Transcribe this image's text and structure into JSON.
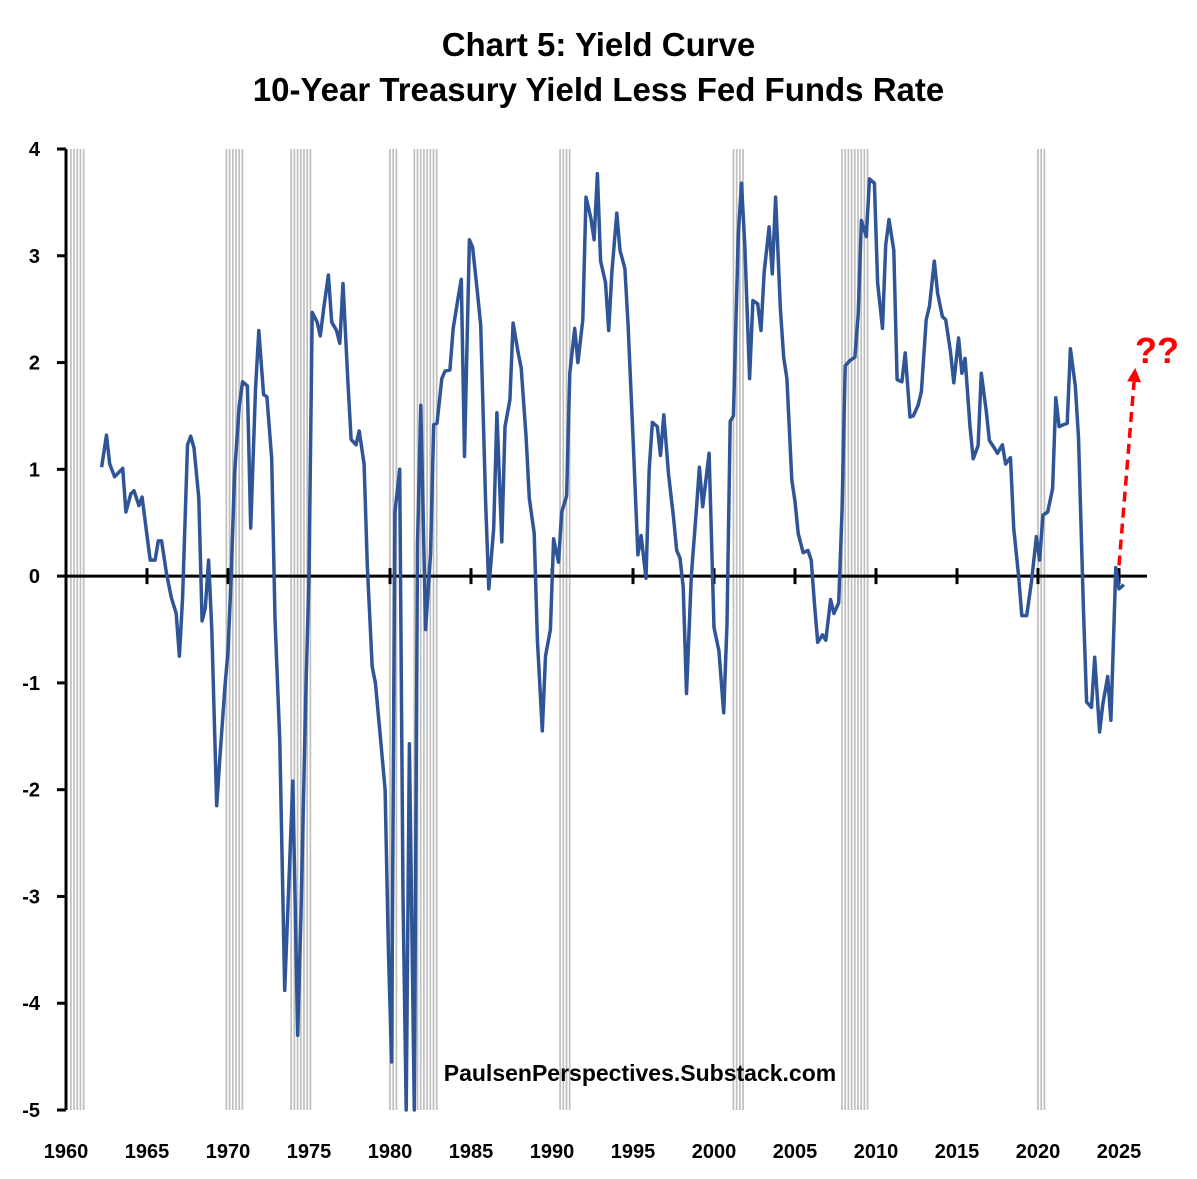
{
  "title_line1": "Chart 5: Yield Curve",
  "title_line2": "10-Year Treasury Yield Less Fed Funds Rate",
  "watermark": "PaulsenPerspectives.Substack.com",
  "annotation": "??",
  "chart_data": {
    "type": "line",
    "title": "Chart 5: Yield Curve — 10-Year Treasury Yield Less Fed Funds Rate",
    "xlabel": "",
    "ylabel": "",
    "xlim": [
      1960,
      2026.5
    ],
    "ylim": [
      -5,
      4
    ],
    "x_ticks": [
      1960,
      1965,
      1970,
      1975,
      1980,
      1985,
      1990,
      1995,
      2000,
      2005,
      2010,
      2015,
      2020,
      2025
    ],
    "x_tick_labels": [
      "1960",
      "1965",
      "1970",
      "1975",
      "1980",
      "1985",
      "1990",
      "1995",
      "2000",
      "2005",
      "2010",
      "2015",
      "2020",
      "2025"
    ],
    "y_ticks": [
      4,
      3,
      2,
      1,
      0,
      -1,
      -2,
      -3,
      -4,
      -5
    ],
    "y_tick_labels": [
      "4",
      "3",
      "2",
      "1",
      "0",
      "-1",
      "-2",
      "-3",
      "-4",
      "-5"
    ],
    "line_color": "#2F5597",
    "recession_color": "#bfbfbf",
    "arrow_color": "#ff0000",
    "recessions": [
      [
        1960.3,
        1961.1
      ],
      [
        1969.9,
        1970.9
      ],
      [
        1973.9,
        1975.2
      ],
      [
        1980.0,
        1980.5
      ],
      [
        1981.5,
        1982.9
      ],
      [
        1990.5,
        1991.2
      ],
      [
        2001.2,
        2001.9
      ],
      [
        2007.9,
        2009.5
      ],
      [
        2020.0,
        2020.4
      ]
    ],
    "arrow": {
      "from": [
        2025.0,
        0.1
      ],
      "to": [
        2026.0,
        1.95
      ]
    },
    "series": [
      {
        "name": "10-Year Treasury Yield Less Fed Funds Rate",
        "points": [
          [
            1962.2,
            1.02
          ],
          [
            1962.5,
            1.32
          ],
          [
            1962.7,
            1.05
          ],
          [
            1963.0,
            0.93
          ],
          [
            1963.5,
            1.01
          ],
          [
            1963.7,
            0.6
          ],
          [
            1964.0,
            0.77
          ],
          [
            1964.2,
            0.8
          ],
          [
            1964.5,
            0.66
          ],
          [
            1964.7,
            0.74
          ],
          [
            1965.0,
            0.38
          ],
          [
            1965.2,
            0.15
          ],
          [
            1965.5,
            0.15
          ],
          [
            1965.7,
            0.33
          ],
          [
            1965.9,
            0.33
          ],
          [
            1966.2,
            0.03
          ],
          [
            1966.5,
            -0.2
          ],
          [
            1966.8,
            -0.35
          ],
          [
            1967.0,
            -0.75
          ],
          [
            1967.2,
            -0.2
          ],
          [
            1967.5,
            1.23
          ],
          [
            1967.7,
            1.31
          ],
          [
            1967.9,
            1.2
          ],
          [
            1968.2,
            0.73
          ],
          [
            1968.4,
            -0.42
          ],
          [
            1968.6,
            -0.3
          ],
          [
            1968.8,
            0.15
          ],
          [
            1969.0,
            -0.5
          ],
          [
            1969.3,
            -2.15
          ],
          [
            1969.5,
            -1.7
          ],
          [
            1969.8,
            -1.05
          ],
          [
            1970.0,
            -0.7
          ],
          [
            1970.2,
            0.0
          ],
          [
            1970.4,
            0.95
          ],
          [
            1970.7,
            1.6
          ],
          [
            1970.9,
            1.82
          ],
          [
            1971.2,
            1.78
          ],
          [
            1971.4,
            0.45
          ],
          [
            1971.7,
            1.75
          ],
          [
            1971.9,
            2.3
          ],
          [
            1972.2,
            1.7
          ],
          [
            1972.4,
            1.68
          ],
          [
            1972.7,
            1.1
          ],
          [
            1972.9,
            -0.4
          ],
          [
            1973.2,
            -1.55
          ],
          [
            1973.5,
            -3.88
          ],
          [
            1973.8,
            -2.7
          ],
          [
            1974.0,
            -1.92
          ],
          [
            1974.3,
            -4.3
          ],
          [
            1974.5,
            -3.2
          ],
          [
            1974.8,
            -1.1
          ],
          [
            1975.0,
            0.0
          ],
          [
            1975.2,
            2.47
          ],
          [
            1975.5,
            2.38
          ],
          [
            1975.7,
            2.25
          ],
          [
            1975.9,
            2.5
          ],
          [
            1976.2,
            2.82
          ],
          [
            1976.4,
            2.38
          ],
          [
            1976.7,
            2.3
          ],
          [
            1976.9,
            2.18
          ],
          [
            1977.1,
            2.74
          ],
          [
            1977.4,
            1.82
          ],
          [
            1977.6,
            1.28
          ],
          [
            1977.9,
            1.23
          ],
          [
            1978.1,
            1.36
          ],
          [
            1978.4,
            1.05
          ],
          [
            1978.6,
            0.1
          ],
          [
            1978.9,
            -0.85
          ],
          [
            1979.1,
            -1.0
          ],
          [
            1979.4,
            -1.5
          ],
          [
            1979.7,
            -2.0
          ],
          [
            1979.9,
            -3.5
          ],
          [
            1980.1,
            -4.55
          ],
          [
            1980.3,
            0.6
          ],
          [
            1980.6,
            1.0
          ],
          [
            1980.8,
            -3.0
          ],
          [
            1981.0,
            -5.0
          ],
          [
            1981.2,
            -1.57
          ],
          [
            1981.5,
            -5.0
          ],
          [
            1981.7,
            0.3
          ],
          [
            1981.9,
            1.6
          ],
          [
            1982.2,
            -0.5
          ],
          [
            1982.5,
            0.2
          ],
          [
            1982.7,
            1.42
          ],
          [
            1982.9,
            1.43
          ],
          [
            1983.2,
            1.85
          ],
          [
            1983.4,
            1.92
          ],
          [
            1983.7,
            1.93
          ],
          [
            1983.9,
            2.32
          ],
          [
            1984.2,
            2.6
          ],
          [
            1984.4,
            2.78
          ],
          [
            1984.6,
            1.12
          ],
          [
            1984.9,
            3.15
          ],
          [
            1985.1,
            3.08
          ],
          [
            1985.4,
            2.65
          ],
          [
            1985.6,
            2.35
          ],
          [
            1985.9,
            0.7
          ],
          [
            1986.1,
            -0.12
          ],
          [
            1986.4,
            0.45
          ],
          [
            1986.6,
            1.53
          ],
          [
            1986.9,
            0.32
          ],
          [
            1987.1,
            1.4
          ],
          [
            1987.4,
            1.65
          ],
          [
            1987.6,
            2.37
          ],
          [
            1987.9,
            2.1
          ],
          [
            1988.1,
            1.95
          ],
          [
            1988.4,
            1.3
          ],
          [
            1988.6,
            0.73
          ],
          [
            1988.9,
            0.4
          ],
          [
            1989.1,
            -0.6
          ],
          [
            1989.4,
            -1.45
          ],
          [
            1989.6,
            -0.75
          ],
          [
            1989.9,
            -0.5
          ],
          [
            1990.1,
            0.35
          ],
          [
            1990.4,
            0.13
          ],
          [
            1990.6,
            0.6
          ],
          [
            1990.9,
            0.75
          ],
          [
            1991.1,
            1.9
          ],
          [
            1991.4,
            2.32
          ],
          [
            1991.6,
            2.0
          ],
          [
            1991.9,
            2.4
          ],
          [
            1992.1,
            3.55
          ],
          [
            1992.4,
            3.35
          ],
          [
            1992.6,
            3.15
          ],
          [
            1992.8,
            3.77
          ],
          [
            1993.0,
            2.95
          ],
          [
            1993.3,
            2.75
          ],
          [
            1993.5,
            2.3
          ],
          [
            1993.7,
            2.85
          ],
          [
            1994.0,
            3.4
          ],
          [
            1994.2,
            3.05
          ],
          [
            1994.5,
            2.88
          ],
          [
            1994.7,
            2.35
          ],
          [
            1995.0,
            1.3
          ],
          [
            1995.3,
            0.2
          ],
          [
            1995.5,
            0.38
          ],
          [
            1995.8,
            -0.02
          ],
          [
            1996.0,
            1.0
          ],
          [
            1996.2,
            1.44
          ],
          [
            1996.5,
            1.4
          ],
          [
            1996.7,
            1.13
          ],
          [
            1996.9,
            1.51
          ],
          [
            1997.2,
            0.95
          ],
          [
            1997.5,
            0.55
          ],
          [
            1997.7,
            0.24
          ],
          [
            1997.9,
            0.17
          ],
          [
            1998.1,
            -0.1
          ],
          [
            1998.3,
            -1.1
          ],
          [
            1998.6,
            0.0
          ],
          [
            1998.9,
            0.6
          ],
          [
            1999.1,
            1.02
          ],
          [
            1999.3,
            0.65
          ],
          [
            1999.5,
            0.9
          ],
          [
            1999.7,
            1.15
          ],
          [
            2000.0,
            -0.48
          ],
          [
            2000.3,
            -0.7
          ],
          [
            2000.6,
            -1.28
          ],
          [
            2000.8,
            -0.45
          ],
          [
            2001.0,
            1.45
          ],
          [
            2001.2,
            1.5
          ],
          [
            2001.5,
            3.2
          ],
          [
            2001.7,
            3.68
          ],
          [
            2001.9,
            3.1
          ],
          [
            2002.2,
            1.85
          ],
          [
            2002.4,
            2.58
          ],
          [
            2002.7,
            2.55
          ],
          [
            2002.9,
            2.3
          ],
          [
            2003.1,
            2.85
          ],
          [
            2003.4,
            3.27
          ],
          [
            2003.6,
            2.83
          ],
          [
            2003.8,
            3.55
          ],
          [
            2004.1,
            2.5
          ],
          [
            2004.3,
            2.05
          ],
          [
            2004.5,
            1.85
          ],
          [
            2004.8,
            0.9
          ],
          [
            2005.0,
            0.7
          ],
          [
            2005.2,
            0.4
          ],
          [
            2005.5,
            0.22
          ],
          [
            2005.8,
            0.24
          ],
          [
            2006.0,
            0.15
          ],
          [
            2006.2,
            -0.25
          ],
          [
            2006.4,
            -0.62
          ],
          [
            2006.7,
            -0.55
          ],
          [
            2006.9,
            -0.6
          ],
          [
            2007.2,
            -0.22
          ],
          [
            2007.4,
            -0.35
          ],
          [
            2007.7,
            -0.25
          ],
          [
            2007.9,
            0.6
          ],
          [
            2008.1,
            1.97
          ],
          [
            2008.4,
            2.02
          ],
          [
            2008.7,
            2.05
          ],
          [
            2008.9,
            2.45
          ],
          [
            2009.1,
            3.33
          ],
          [
            2009.4,
            3.18
          ],
          [
            2009.6,
            3.72
          ],
          [
            2009.9,
            3.68
          ],
          [
            2010.1,
            2.75
          ],
          [
            2010.4,
            2.32
          ],
          [
            2010.6,
            3.1
          ],
          [
            2010.8,
            3.34
          ],
          [
            2011.1,
            3.05
          ],
          [
            2011.3,
            1.84
          ],
          [
            2011.6,
            1.82
          ],
          [
            2011.8,
            2.09
          ],
          [
            2012.1,
            1.49
          ],
          [
            2012.3,
            1.5
          ],
          [
            2012.6,
            1.6
          ],
          [
            2012.8,
            1.73
          ],
          [
            2013.1,
            2.4
          ],
          [
            2013.3,
            2.53
          ],
          [
            2013.6,
            2.95
          ],
          [
            2013.8,
            2.65
          ],
          [
            2014.1,
            2.43
          ],
          [
            2014.3,
            2.4
          ],
          [
            2014.6,
            2.1
          ],
          [
            2014.8,
            1.81
          ],
          [
            2015.1,
            2.23
          ],
          [
            2015.3,
            1.9
          ],
          [
            2015.5,
            2.04
          ],
          [
            2015.8,
            1.4
          ],
          [
            2016.0,
            1.1
          ],
          [
            2016.3,
            1.22
          ],
          [
            2016.5,
            1.9
          ],
          [
            2016.8,
            1.55
          ],
          [
            2017.0,
            1.27
          ],
          [
            2017.3,
            1.2
          ],
          [
            2017.5,
            1.15
          ],
          [
            2017.8,
            1.23
          ],
          [
            2018.0,
            1.05
          ],
          [
            2018.3,
            1.11
          ],
          [
            2018.5,
            0.45
          ],
          [
            2018.8,
            0.0
          ],
          [
            2019.0,
            -0.37
          ],
          [
            2019.3,
            -0.37
          ],
          [
            2019.6,
            -0.05
          ],
          [
            2019.9,
            0.37
          ],
          [
            2020.1,
            0.15
          ],
          [
            2020.3,
            0.57
          ],
          [
            2020.6,
            0.6
          ],
          [
            2020.9,
            0.82
          ],
          [
            2021.1,
            1.67
          ],
          [
            2021.3,
            1.4
          ],
          [
            2021.6,
            1.42
          ],
          [
            2021.8,
            1.43
          ],
          [
            2022.0,
            2.13
          ],
          [
            2022.3,
            1.78
          ],
          [
            2022.5,
            1.3
          ],
          [
            2022.8,
            -0.3
          ],
          [
            2023.0,
            -1.18
          ],
          [
            2023.3,
            -1.23
          ],
          [
            2023.5,
            -0.76
          ],
          [
            2023.8,
            -1.46
          ],
          [
            2024.0,
            -1.2
          ],
          [
            2024.3,
            -0.94
          ],
          [
            2024.5,
            -1.35
          ],
          [
            2024.8,
            0.08
          ],
          [
            2025.0,
            -0.12
          ],
          [
            2025.3,
            -0.08
          ]
        ]
      }
    ]
  }
}
